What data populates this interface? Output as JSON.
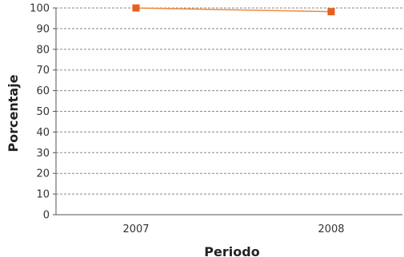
{
  "chart_data": {
    "type": "line",
    "xlabel": "Periodo",
    "ylabel": "Porcentaje",
    "categories": [
      "2007",
      "2008"
    ],
    "series": [
      {
        "values": [
          100,
          98.2
        ]
      }
    ],
    "ylim": [
      0,
      100
    ],
    "yticks": [
      0,
      10,
      20,
      30,
      40,
      50,
      60,
      70,
      80,
      90,
      100
    ],
    "grid": true,
    "colors": {
      "line": "#f08a3c",
      "marker": "#e8601c",
      "grid": "#8a8a8a",
      "axis": "#555555"
    }
  }
}
